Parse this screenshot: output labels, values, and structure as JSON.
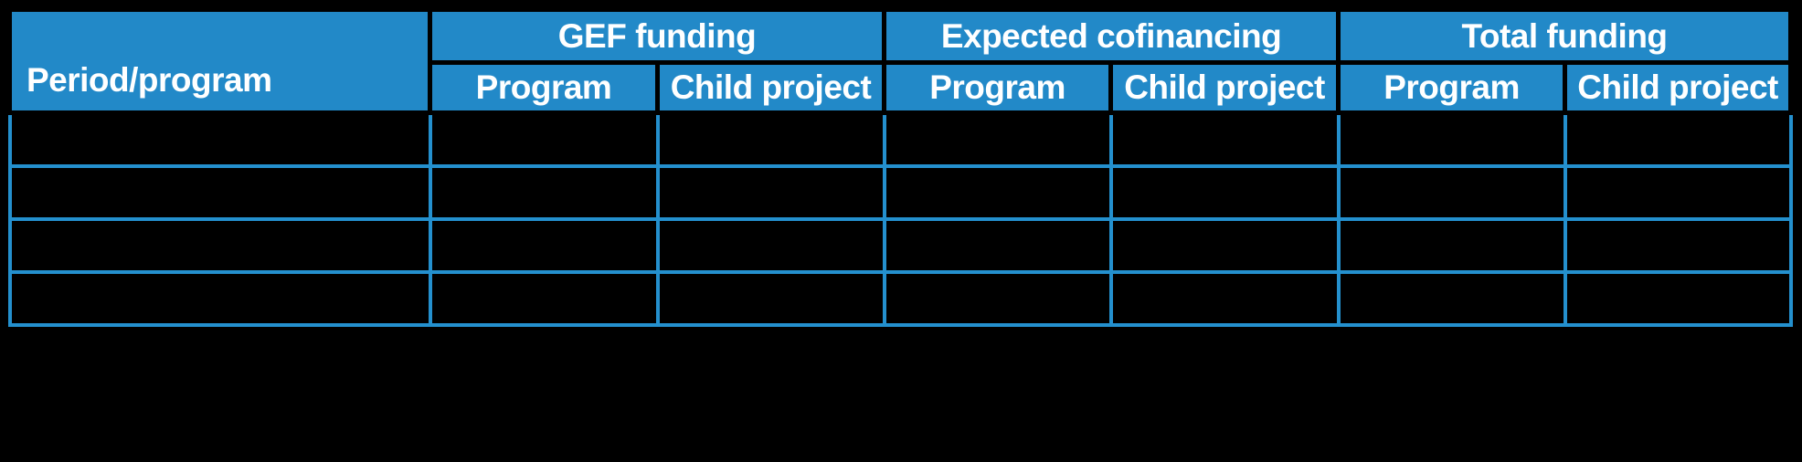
{
  "page": {
    "background_color": "#000000"
  },
  "table": {
    "period_column_header": "Period/program",
    "column_groups": [
      {
        "label": "GEF funding",
        "sub_columns": [
          "Program",
          "Child project"
        ]
      },
      {
        "label": "Expected cofinancing",
        "sub_columns": [
          "Program",
          "Child project"
        ]
      },
      {
        "label": "Total funding",
        "sub_columns": [
          "Program",
          "Child project"
        ]
      }
    ],
    "body_rows": [
      [
        "",
        "",
        "",
        "",
        "",
        "",
        ""
      ],
      [
        "",
        "",
        "",
        "",
        "",
        "",
        ""
      ],
      [
        "",
        "",
        "",
        "",
        "",
        "",
        ""
      ],
      [
        "",
        "",
        "",
        "",
        "",
        "",
        ""
      ]
    ],
    "colors": {
      "header_background": "#2289C8",
      "header_text": "#FFFFFF",
      "grid_line": "#2490CE",
      "header_divider": "#000000",
      "cell_background": "#000000"
    }
  }
}
